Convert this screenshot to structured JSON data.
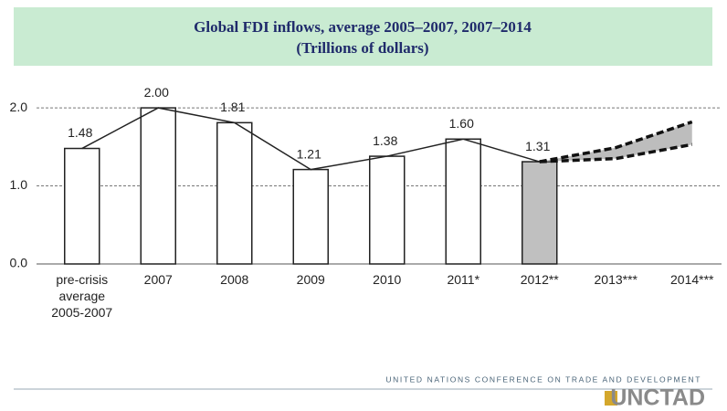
{
  "chart_data": {
    "type": "bar",
    "title": "Global FDI inflows, average 2005–2007, 2007–2014",
    "subtitle": "(Trillions of dollars)",
    "categories": [
      "pre-crisis average 2005-2007",
      "2007",
      "2008",
      "2009",
      "2010",
      "2011*",
      "2012**",
      "2013***",
      "2014***"
    ],
    "values": [
      1.48,
      2.0,
      1.81,
      1.21,
      1.38,
      1.6,
      1.31,
      null,
      null
    ],
    "value_labels": [
      "1.48",
      "2.00",
      "1.81",
      "1.21",
      "1.38",
      "1.60",
      "1.31",
      null,
      null
    ],
    "colors": [
      "#ffffff",
      "#ffffff",
      "#ffffff",
      "#ffffff",
      "#ffffff",
      "#ffffff",
      "#c0c0c0",
      null,
      null
    ],
    "forecast": {
      "low": [
        null,
        null,
        null,
        null,
        null,
        null,
        1.31,
        1.35,
        1.53
      ],
      "high": [
        null,
        null,
        null,
        null,
        null,
        null,
        1.31,
        1.49,
        1.82
      ],
      "color": "#bdbdbd"
    },
    "ylim": [
      0,
      2.2
    ],
    "yticks": [
      {
        "value": 0,
        "label": "0.0"
      },
      {
        "value": 1,
        "label": "1.0"
      },
      {
        "value": 2,
        "label": "2.0"
      }
    ],
    "grid": true
  },
  "footer": {
    "organization": "UNITED NATIONS CONFERENCE ON TRADE AND DEVELOPMENT",
    "logo": "UNCTAD"
  }
}
